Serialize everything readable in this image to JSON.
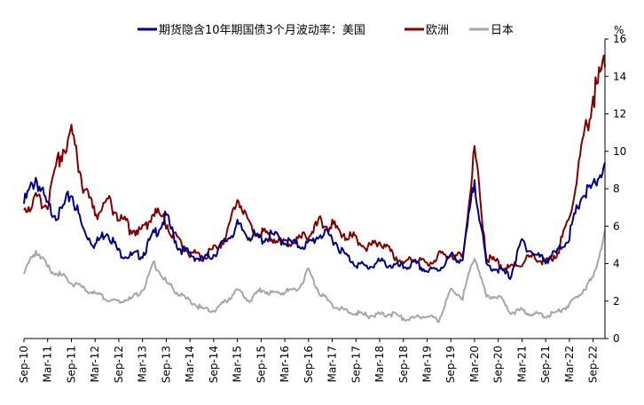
{
  "chart_data": {
    "type": "line",
    "title": "",
    "ylabel": "%",
    "xlabel": "",
    "ylim": [
      0,
      16
    ],
    "yticks": [
      0,
      2,
      4,
      6,
      8,
      10,
      12,
      14,
      16
    ],
    "y_axis_side": "right",
    "grid": false,
    "legend_position": "top",
    "x_tick_labels": [
      "Sep-10",
      "Mar-11",
      "Sep-11",
      "Mar-12",
      "Sep-12",
      "Mar-13",
      "Sep-13",
      "Mar-14",
      "Sep-14",
      "Mar-15",
      "Sep-15",
      "Mar-16",
      "Sep-16",
      "Mar-17",
      "Sep-17",
      "Mar-18",
      "Sep-18",
      "Mar-19",
      "Sep-19",
      "Mar-20",
      "Sep-20",
      "Mar-21",
      "Sep-21",
      "Mar-22",
      "Sep-22"
    ],
    "x": [
      "Sep-10",
      "Dec-10",
      "Mar-11",
      "Jun-11",
      "Sep-11",
      "Dec-11",
      "Mar-12",
      "Jun-12",
      "Sep-12",
      "Dec-12",
      "Mar-13",
      "Jun-13",
      "Sep-13",
      "Dec-13",
      "Mar-14",
      "Jun-14",
      "Sep-14",
      "Dec-14",
      "Mar-15",
      "Jun-15",
      "Sep-15",
      "Dec-15",
      "Mar-16",
      "Jun-16",
      "Sep-16",
      "Dec-16",
      "Mar-17",
      "Jun-17",
      "Sep-17",
      "Dec-17",
      "Mar-18",
      "Jun-18",
      "Sep-18",
      "Dec-18",
      "Mar-19",
      "Jun-19",
      "Sep-19",
      "Dec-19",
      "Mar-20",
      "Jun-20",
      "Sep-20",
      "Dec-20",
      "Mar-21",
      "Jun-21",
      "Sep-21",
      "Dec-21",
      "Mar-22",
      "Jun-22",
      "Sep-22",
      "Oct-22"
    ],
    "series": [
      {
        "name": "期货隐含10年期国债3个月波动率：美国",
        "color": "#00007f",
        "values": [
          7.2,
          8.6,
          7.0,
          6.6,
          7.8,
          5.8,
          5.0,
          5.8,
          4.6,
          4.4,
          4.5,
          5.6,
          6.5,
          4.9,
          4.5,
          4.2,
          4.5,
          5.2,
          6.0,
          5.5,
          5.3,
          5.5,
          5.2,
          5.0,
          5.0,
          5.6,
          5.4,
          4.5,
          4.0,
          3.8,
          4.1,
          3.9,
          3.8,
          4.0,
          3.6,
          3.7,
          4.4,
          4.2,
          8.5,
          3.9,
          3.7,
          3.3,
          5.2,
          4.5,
          4.2,
          4.6,
          5.5,
          7.6,
          8.0,
          9.4
        ]
      },
      {
        "name": "欧洲",
        "color": "#800000",
        "values": [
          7.0,
          7.4,
          7.2,
          9.7,
          11.0,
          8.2,
          6.6,
          7.4,
          6.6,
          5.8,
          5.8,
          6.8,
          6.2,
          5.2,
          4.6,
          4.3,
          4.8,
          5.3,
          7.6,
          6.0,
          5.6,
          5.4,
          5.0,
          5.2,
          5.6,
          6.2,
          6.0,
          5.6,
          5.3,
          4.8,
          5.2,
          4.6,
          4.0,
          4.3,
          4.0,
          4.4,
          4.5,
          4.3,
          10.2,
          4.4,
          4.0,
          3.7,
          4.1,
          4.4,
          4.1,
          4.6,
          6.5,
          10.0,
          13.0,
          14.5
        ]
      },
      {
        "name": "日本",
        "color": "#a6a6a6",
        "values": [
          3.4,
          4.8,
          3.8,
          3.4,
          3.0,
          2.7,
          2.4,
          2.1,
          2.0,
          2.1,
          2.6,
          4.0,
          3.0,
          2.4,
          2.0,
          1.6,
          1.5,
          2.0,
          2.6,
          2.0,
          2.6,
          2.4,
          2.5,
          2.6,
          3.6,
          2.4,
          1.8,
          1.5,
          1.4,
          1.2,
          1.3,
          1.3,
          1.1,
          1.1,
          1.2,
          1.0,
          2.6,
          2.2,
          4.5,
          2.2,
          2.3,
          1.4,
          1.5,
          1.3,
          1.2,
          1.4,
          1.8,
          2.5,
          3.2,
          5.8
        ]
      }
    ]
  }
}
